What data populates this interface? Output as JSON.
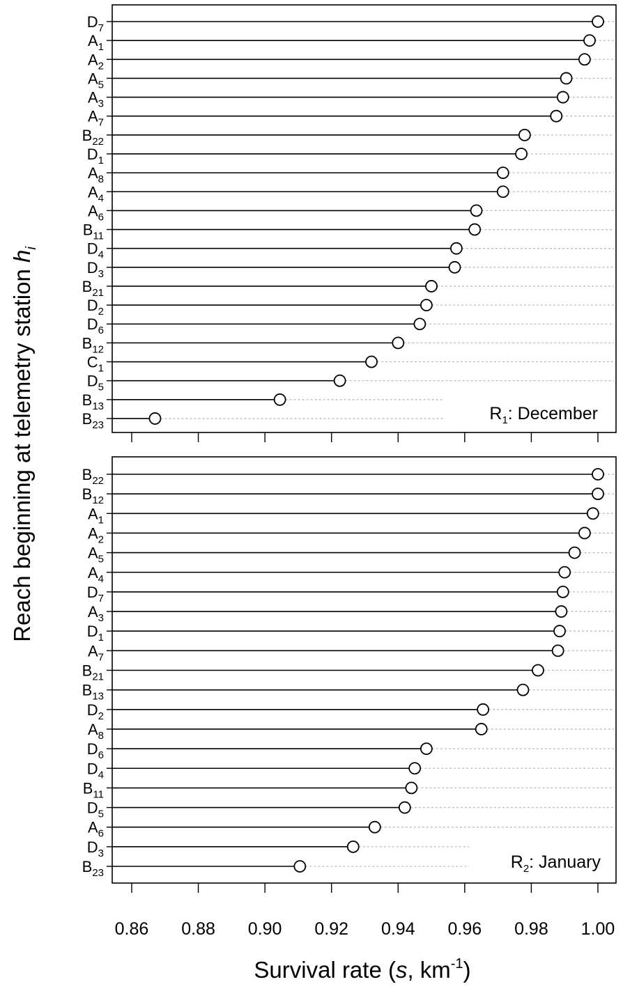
{
  "chart_data": {
    "type": "dotplot",
    "ylabel": "Reach beginning at telemetry station",
    "ylabel_symbol": "h",
    "ylabel_symbol_sub": "i",
    "xlabel": "Survival rate (",
    "xlabel_symbol": "s",
    "xlabel_unit": ", km",
    "xlabel_unit_sup": "-1",
    "xlabel_close": ")",
    "xlim": [
      0.86,
      1.0
    ],
    "x_ticks": [
      "0.86",
      "0.88",
      "0.90",
      "0.92",
      "0.94",
      "0.96",
      "0.98",
      "1.00"
    ],
    "x_tick_values": [
      0.86,
      0.88,
      0.9,
      0.92,
      0.94,
      0.96,
      0.98,
      1.0
    ],
    "panels": [
      {
        "label_main": "R",
        "label_sub": "1",
        "label_rest": ": December",
        "reaches": [
          {
            "main": "D",
            "sub": "7",
            "value": 1.0
          },
          {
            "main": "A",
            "sub": "1",
            "value": 0.9975
          },
          {
            "main": "A",
            "sub": "2",
            "value": 0.996
          },
          {
            "main": "A",
            "sub": "5",
            "value": 0.9905
          },
          {
            "main": "A",
            "sub": "3",
            "value": 0.9895
          },
          {
            "main": "A",
            "sub": "7",
            "value": 0.9875
          },
          {
            "main": "B",
            "sub": "22",
            "value": 0.978
          },
          {
            "main": "D",
            "sub": "1",
            "value": 0.977
          },
          {
            "main": "A",
            "sub": "8",
            "value": 0.9715
          },
          {
            "main": "A",
            "sub": "4",
            "value": 0.9715
          },
          {
            "main": "A",
            "sub": "6",
            "value": 0.9635
          },
          {
            "main": "B",
            "sub": "11",
            "value": 0.963
          },
          {
            "main": "D",
            "sub": "4",
            "value": 0.9575
          },
          {
            "main": "D",
            "sub": "3",
            "value": 0.957
          },
          {
            "main": "B",
            "sub": "21",
            "value": 0.95
          },
          {
            "main": "D",
            "sub": "2",
            "value": 0.9485
          },
          {
            "main": "D",
            "sub": "6",
            "value": 0.9465
          },
          {
            "main": "B",
            "sub": "12",
            "value": 0.94
          },
          {
            "main": "C",
            "sub": "1",
            "value": 0.932
          },
          {
            "main": "D",
            "sub": "5",
            "value": 0.9225
          },
          {
            "main": "B",
            "sub": "13",
            "value": 0.9045
          },
          {
            "main": "B",
            "sub": "23",
            "value": 0.867
          }
        ]
      },
      {
        "label_main": "R",
        "label_sub": "2",
        "label_rest": ": January",
        "reaches": [
          {
            "main": "B",
            "sub": "22",
            "value": 1.0
          },
          {
            "main": "B",
            "sub": "12",
            "value": 1.0
          },
          {
            "main": "A",
            "sub": "1",
            "value": 0.9985
          },
          {
            "main": "A",
            "sub": "2",
            "value": 0.996
          },
          {
            "main": "A",
            "sub": "5",
            "value": 0.993
          },
          {
            "main": "A",
            "sub": "4",
            "value": 0.99
          },
          {
            "main": "D",
            "sub": "7",
            "value": 0.9895
          },
          {
            "main": "A",
            "sub": "3",
            "value": 0.989
          },
          {
            "main": "D",
            "sub": "1",
            "value": 0.9885
          },
          {
            "main": "A",
            "sub": "7",
            "value": 0.988
          },
          {
            "main": "B",
            "sub": "21",
            "value": 0.982
          },
          {
            "main": "B",
            "sub": "13",
            "value": 0.9775
          },
          {
            "main": "D",
            "sub": "2",
            "value": 0.9655
          },
          {
            "main": "A",
            "sub": "8",
            "value": 0.965
          },
          {
            "main": "D",
            "sub": "6",
            "value": 0.9485
          },
          {
            "main": "D",
            "sub": "4",
            "value": 0.945
          },
          {
            "main": "B",
            "sub": "11",
            "value": 0.944
          },
          {
            "main": "D",
            "sub": "5",
            "value": 0.942
          },
          {
            "main": "A",
            "sub": "6",
            "value": 0.933
          },
          {
            "main": "D",
            "sub": "3",
            "value": 0.9265
          },
          {
            "main": "B",
            "sub": "23",
            "value": 0.9105
          }
        ]
      }
    ],
    "grid": "dotted reference lines to the right of each point",
    "colors": {
      "line": "#000000",
      "dotted": "#bbbbbb",
      "point_fill": "#ffffff"
    }
  }
}
